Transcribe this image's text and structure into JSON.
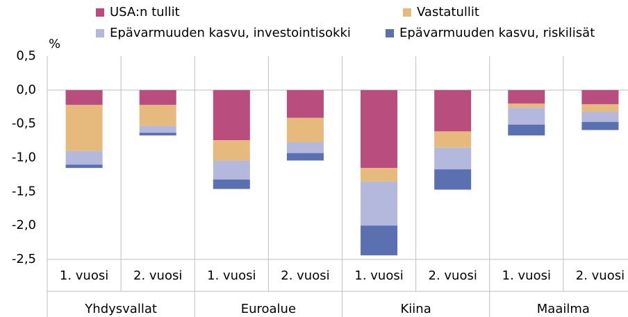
{
  "chart_data": {
    "type": "stacked_bar",
    "y_label": "%",
    "categories": [
      "1. vuosi",
      "2. vuosi",
      "1. vuosi",
      "2. vuosi",
      "1. vuosi",
      "2. vuosi",
      "1. vuosi",
      "2. vuosi"
    ],
    "groups": [
      "Yhdysvallat",
      "Euroalue",
      "Kiina",
      "Maailma"
    ],
    "series": [
      {
        "name": "USA:n tullit",
        "color": "#b84d7e",
        "values": [
          -0.22,
          -0.22,
          -0.74,
          -0.41,
          -1.15,
          -0.61,
          -0.2,
          -0.21
        ]
      },
      {
        "name": "Vastatullit",
        "color": "#e6ba7c",
        "values": [
          -0.68,
          -0.31,
          -0.3,
          -0.36,
          -0.2,
          -0.24,
          -0.06,
          -0.11
        ]
      },
      {
        "name": "Epävarmuuden kasvu, investointisokki",
        "color": "#b4b8dc",
        "values": [
          -0.2,
          -0.1,
          -0.28,
          -0.16,
          -0.65,
          -0.32,
          -0.25,
          -0.15
        ]
      },
      {
        "name": "Epävarmuuden kasvu, riskilisät",
        "color": "#5b70b0",
        "values": [
          -0.05,
          -0.04,
          -0.14,
          -0.11,
          -0.44,
          -0.3,
          -0.16,
          -0.12
        ]
      }
    ],
    "ylim": [
      -2.5,
      0.5
    ],
    "yticks": [
      {
        "value": 0.5,
        "label": "0,5"
      },
      {
        "value": 0,
        "label": "0,0"
      },
      {
        "value": -0.5,
        "label": "-0,5"
      },
      {
        "value": -1,
        "label": "-1,0"
      },
      {
        "value": -1.5,
        "label": "-1,5"
      },
      {
        "value": -2,
        "label": "-2,0"
      },
      {
        "value": -2.5,
        "label": "-2,5"
      }
    ]
  }
}
